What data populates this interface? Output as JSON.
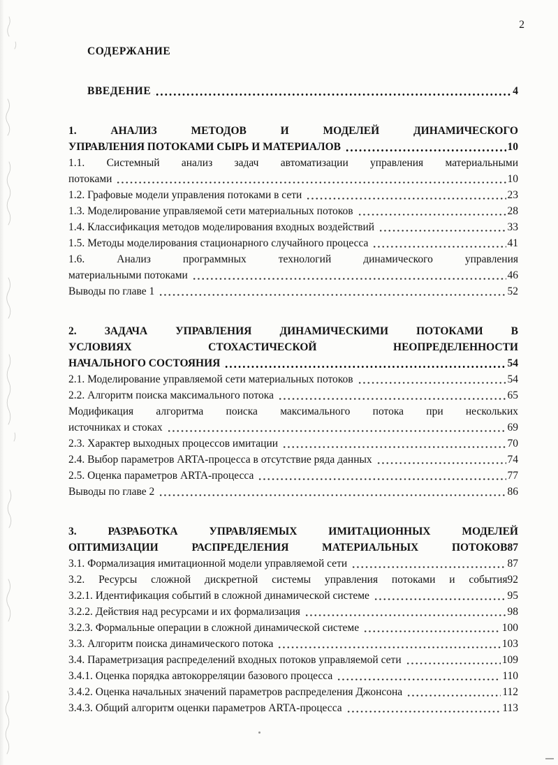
{
  "page": {
    "number": "2",
    "heading": "СОДЕРЖАНИЕ"
  },
  "toc": {
    "entries": [
      {
        "title_lines": [
          "ВВЕДЕНИЕ"
        ],
        "page": "4",
        "leader": true,
        "bold": true,
        "chapter": true,
        "indent": true
      },
      {
        "title_lines": [
          "1. АНАЛИЗ МЕТОДОВ И МОДЕЛЕЙ ДИНАМИЧЕСКОГО",
          "УПРАВЛЕНИЯ ПОТОКАМИ СЫРЬ И МАТЕРИАЛОВ"
        ],
        "page": "10",
        "leader": true,
        "bold": true,
        "chapter": true
      },
      {
        "title_lines": [
          "1.1. Системный анализ задач автоматизации управления материальными",
          "потоками"
        ],
        "page": "10",
        "leader": true
      },
      {
        "title_lines": [
          "1.2. Графовые модели управления потоками в сети"
        ],
        "page": "23",
        "leader": true
      },
      {
        "title_lines": [
          "1.3. Моделирование управляемой сети материальных потоков"
        ],
        "page": "28",
        "leader": true
      },
      {
        "title_lines": [
          "1.4. Классификация методов моделирования входных воздействий"
        ],
        "page": "33",
        "leader": true
      },
      {
        "title_lines": [
          "1.5. Методы моделирования стационарного случайного процесса"
        ],
        "page": "41",
        "leader": true
      },
      {
        "title_lines": [
          "1.6. Анализ программных технологий динамического управления",
          "материальными потоками"
        ],
        "page": "46",
        "leader": true
      },
      {
        "title_lines": [
          "Выводы по главе 1"
        ],
        "page": "52",
        "leader": true
      },
      {
        "title_lines": [
          "2. ЗАДАЧА УПРАВЛЕНИЯ ДИНАМИЧЕСКИМИ ПОТОКАМИ В",
          "УСЛОВИЯХ СТОХАСТИЧЕСКОЙ НЕОПРЕДЕЛЕННОСТИ",
          "НАЧАЛЬНОГО СОСТОЯНИЯ"
        ],
        "page": "54",
        "leader": true,
        "bold": true,
        "chapter": true
      },
      {
        "title_lines": [
          "2.1. Моделирование управляемой сети материальных потоков"
        ],
        "page": "54",
        "leader": true
      },
      {
        "title_lines": [
          "2.2. Алгоритм поиска максимального потока"
        ],
        "page": "65",
        "leader": true
      },
      {
        "title_lines": [
          "Модификация алгоритма поиска максимального потока при нескольких",
          "источниках и стоках"
        ],
        "page": "69",
        "leader": true
      },
      {
        "title_lines": [
          "2.3. Характер выходных процессов имитации"
        ],
        "page": "70",
        "leader": true
      },
      {
        "title_lines": [
          "2.4. Выбор параметров ARTA-процесса в отсутствие ряда данных"
        ],
        "page": "74",
        "leader": true
      },
      {
        "title_lines": [
          "2.5. Оценка параметров ARTA-процесса"
        ],
        "page": "77",
        "leader": true
      },
      {
        "title_lines": [
          "Выводы по главе 2"
        ],
        "page": "86",
        "leader": true
      },
      {
        "title_lines": [
          "3. РАЗРАБОТКА УПРАВЛЯЕМЫХ ИМИТАЦИОННЫХ МОДЕЛЕЙ",
          "ОПТИМИЗАЦИИ РАСПРЕДЕЛЕНИЯ МАТЕРИАЛЬНЫХ ПОТОКОВ"
        ],
        "page": "87",
        "leader": false,
        "bold": true,
        "chapter": true
      },
      {
        "title_lines": [
          "3.1. Формализация имитационной модели управляемой сети"
        ],
        "page": "87",
        "leader": true
      },
      {
        "title_lines": [
          "3.2. Ресурсы сложной дискретной системы управления потоками и события"
        ],
        "page": "92",
        "leader": false
      },
      {
        "title_lines": [
          "3.2.1. Идентификация событий в сложной динамической системе"
        ],
        "page": "95",
        "leader": true
      },
      {
        "title_lines": [
          "3.2.2. Действия над ресурсами и их формализация"
        ],
        "page": "98",
        "leader": true
      },
      {
        "title_lines": [
          "3.2.3. Формальные операции в сложной динамической системе"
        ],
        "page": "100",
        "leader": true
      },
      {
        "title_lines": [
          "3.3. Алгоритм поиска динамического потока"
        ],
        "page": "103",
        "leader": true
      },
      {
        "title_lines": [
          "3.4. Параметризация распределений входных потоков управляемой сети"
        ],
        "page": "109",
        "leader": true
      },
      {
        "title_lines": [
          "3.4.1. Оценка порядка автокорреляции базового процесса"
        ],
        "page": "110",
        "leader": true
      },
      {
        "title_lines": [
          "3.4.2. Оценка начальных значений параметров распределения Джонсона"
        ],
        "page": "112",
        "leader": true
      },
      {
        "title_lines": [
          "3.4.3. Общий алгоритм оценки параметров ARTA-процесса"
        ],
        "page": "113",
        "leader": true
      }
    ]
  }
}
